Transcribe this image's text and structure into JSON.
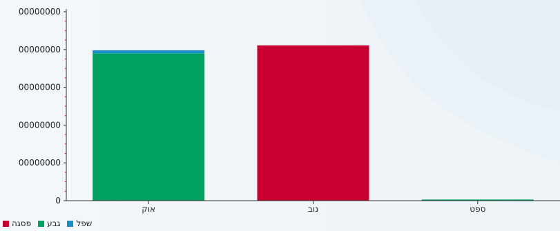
{
  "chart_data": {
    "type": "bar",
    "stacked": true,
    "categories": [
      "אוק",
      "נוב",
      "ספט"
    ],
    "series": [
      {
        "name": "גבע",
        "color": "#00a060",
        "values": [
          390000000,
          0,
          3000000
        ]
      },
      {
        "name": "שפל",
        "color": "#1a8cc6",
        "values": [
          8000000,
          0,
          0
        ]
      },
      {
        "name": "פסגה",
        "color": "#c80032",
        "values": [
          0,
          411000000,
          0
        ]
      }
    ],
    "y_tick_labels": [
      "0",
      "00000000",
      "00000000",
      "00000000",
      "00000000",
      "00000000"
    ],
    "ylim": [
      0,
      500000000
    ],
    "grid": false,
    "legend_position": "bottom-left",
    "legend_order": [
      "פסגה",
      "גבע",
      "שפל"
    ]
  }
}
